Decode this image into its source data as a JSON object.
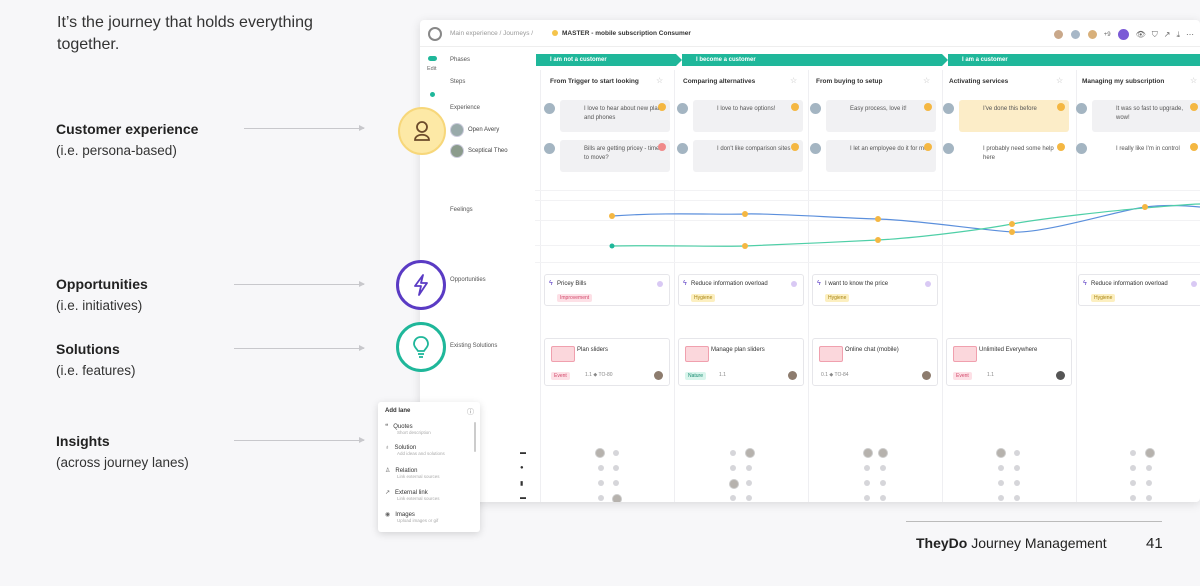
{
  "slide": {
    "intro": "It’s the journey that holds everything together.",
    "labels": [
      {
        "title": "Customer experience",
        "sub": "(i.e. persona-based)"
      },
      {
        "title": "Opportunities",
        "sub": "(i.e. initiatives)"
      },
      {
        "title": "Solutions",
        "sub": "(i.e. features)"
      },
      {
        "title": "Insights",
        "sub": "(across journey lanes)"
      }
    ],
    "brand_bold": "TheyDo",
    "brand_rest": " Journey Management",
    "page_number": "41"
  },
  "app": {
    "breadcrumb": "Main experience / Journeys /",
    "title": "MASTER - mobile subscription Consumer",
    "avatar_count": "+9",
    "sidebar": {
      "edit_label": "Edit"
    },
    "row_labels": {
      "phases": "Phases",
      "steps": "Steps",
      "experience": "Experience",
      "feelings": "Feelings",
      "opportunities": "Opportunities",
      "solutions": "Existing Solutions"
    },
    "phases": [
      "I am not a customer",
      "I become a customer",
      "I am a customer"
    ],
    "steps": [
      "From Trigger to start looking",
      "Comparing alternatives",
      "From buying to setup",
      "Activating services",
      "Managing my subscription"
    ],
    "personas": [
      "Open Avery",
      "Sceptical Theo"
    ],
    "quotes_row1": [
      "I love to hear about new plans and phones",
      "I love to have options!",
      "Easy process, love it!",
      "I've done this before",
      "It was so fast to upgrade, wow!"
    ],
    "quotes_row2": [
      "Bills are getting pricey - time to move?",
      "I don't like comparison sites",
      "I let an employee do it for me.",
      "I probably need some help here",
      "I really like I'm in control"
    ],
    "opportunities": [
      {
        "title": "Pricey Bills",
        "tag": "Improvement"
      },
      {
        "title": "Reduce information overload",
        "tag": "Hygiene"
      },
      {
        "title": "I want to know the price",
        "tag": "Hygiene"
      },
      {
        "title": "Reduce information overload",
        "tag": "Hygiene"
      }
    ],
    "solutions": [
      {
        "title": "Plan sliders",
        "badge": "Event",
        "meta": "1.1  ◆ TO-80"
      },
      {
        "title": "Manage plan sliders",
        "badge": "Nature",
        "meta": "1.1"
      },
      {
        "title": "Online chat (mobile)",
        "badge": "",
        "meta": "0.1  ◆ TO-84"
      },
      {
        "title": "Unlimited Everywhere",
        "badge": "Event",
        "meta": "1.1"
      }
    ],
    "add_lane": {
      "title": "Add lane",
      "items": [
        {
          "label": "Quotes",
          "desc": "Short description"
        },
        {
          "label": "Solution",
          "desc": "Add ideas and solutions"
        },
        {
          "label": "Relation",
          "desc": "Link external sources"
        },
        {
          "label": "External link",
          "desc": "Link external sources"
        },
        {
          "label": "Images",
          "desc": "Upload images or gif"
        }
      ]
    },
    "colors": {
      "accent": "#1fb79a",
      "opportunity": "#5a3bc4",
      "experience": "#f7d77a"
    }
  }
}
